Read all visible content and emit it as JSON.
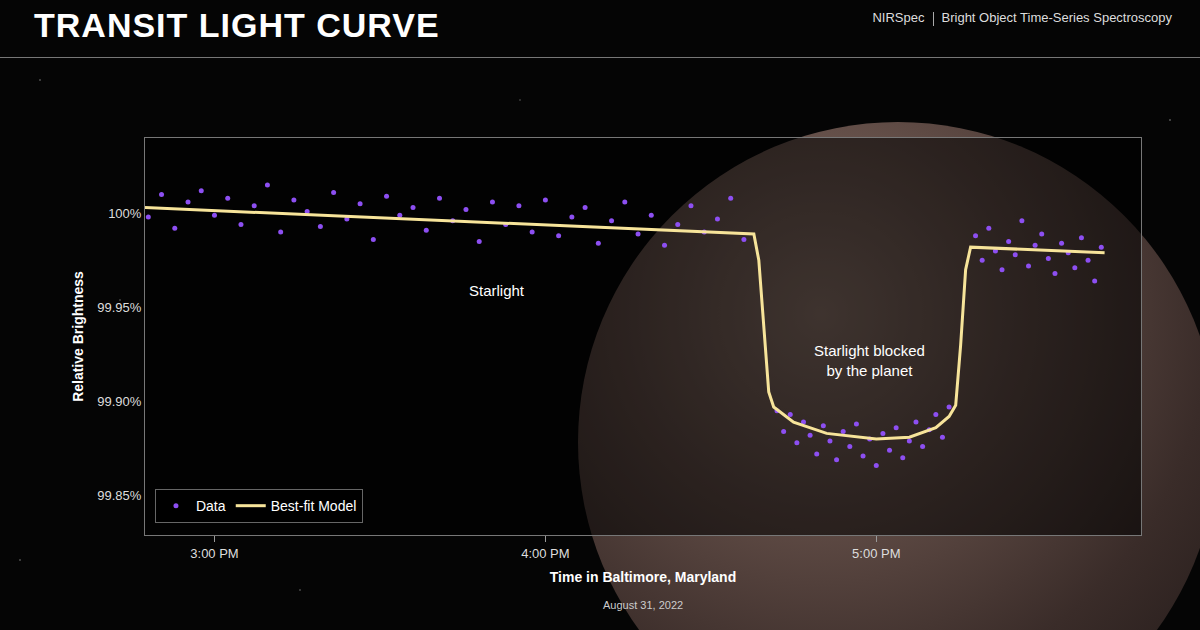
{
  "chart_data": {
    "type": "scatter",
    "title": "TRANSIT LIGHT CURVE",
    "header_right": [
      "NIRSpec",
      "Bright Object Time-Series Spectroscopy"
    ],
    "x_label": "Time in Baltimore, Maryland",
    "x_sublabel": "August 31, 2022",
    "y_label": "Relative Brightness",
    "xlim": [
      14.79,
      17.8
    ],
    "xticks": [
      {
        "value": 15,
        "label": "3:00 PM"
      },
      {
        "value": 16,
        "label": "4:00 PM"
      },
      {
        "value": 17,
        "label": "5:00 PM"
      }
    ],
    "ylim": [
      99.829,
      100.04
    ],
    "yticks": [
      {
        "value": 99.85,
        "label": "99.85%"
      },
      {
        "value": 99.9,
        "label": "99.90%"
      },
      {
        "value": 99.95,
        "label": "99.95%"
      },
      {
        "value": 100,
        "label": "100%"
      }
    ],
    "grid": false,
    "legend": "bottom left",
    "annotations": [
      {
        "text": [
          "Starlight"
        ],
        "x": 15.855,
        "y": 99.959
      },
      {
        "text": [
          "Starlight blocked",
          "by the planet"
        ],
        "x": 16.98,
        "y": 99.922
      }
    ],
    "series": [
      {
        "name": "Data",
        "type": "scatter",
        "marker": "circle",
        "color": "#8d4ff2",
        "x": [
          14.8,
          14.84,
          14.88,
          14.92,
          14.96,
          15.0,
          15.04,
          15.08,
          15.12,
          15.16,
          15.2,
          15.24,
          15.28,
          15.32,
          15.36,
          15.4,
          15.44,
          15.48,
          15.52,
          15.56,
          15.6,
          15.64,
          15.68,
          15.72,
          15.76,
          15.8,
          15.84,
          15.88,
          15.92,
          15.96,
          16.0,
          16.04,
          16.08,
          16.12,
          16.16,
          16.2,
          16.24,
          16.28,
          16.32,
          16.36,
          16.4,
          16.44,
          16.48,
          16.52,
          16.56,
          16.6,
          16.7,
          16.72,
          16.74,
          16.76,
          16.78,
          16.8,
          16.82,
          16.84,
          16.86,
          16.88,
          16.9,
          16.92,
          16.94,
          16.96,
          16.98,
          17.0,
          17.02,
          17.04,
          17.06,
          17.08,
          17.1,
          17.12,
          17.14,
          17.16,
          17.18,
          17.2,
          17.22,
          17.3,
          17.32,
          17.34,
          17.36,
          17.38,
          17.4,
          17.42,
          17.44,
          17.46,
          17.48,
          17.5,
          17.52,
          17.54,
          17.56,
          17.58,
          17.6,
          17.62,
          17.64,
          17.66,
          17.68
        ],
        "values": [
          99.998,
          100.01,
          99.992,
          100.006,
          100.012,
          99.999,
          100.008,
          99.994,
          100.004,
          100.015,
          99.99,
          100.007,
          100.001,
          99.993,
          100.011,
          99.997,
          100.005,
          99.986,
          100.009,
          99.999,
          100.003,
          99.991,
          100.008,
          99.996,
          100.002,
          99.985,
          100.006,
          99.994,
          100.004,
          99.99,
          100.007,
          99.988,
          99.998,
          100.003,
          99.984,
          99.996,
          100.006,
          99.989,
          99.999,
          99.983,
          99.994,
          100.004,
          99.99,
          99.997,
          100.008,
          99.986,
          99.895,
          99.884,
          99.893,
          99.878,
          99.889,
          99.882,
          99.872,
          99.887,
          99.879,
          99.869,
          99.884,
          99.876,
          99.888,
          99.871,
          99.88,
          99.866,
          99.883,
          99.874,
          99.886,
          99.87,
          99.879,
          99.889,
          99.876,
          99.885,
          99.893,
          99.881,
          99.897,
          99.988,
          99.975,
          99.992,
          99.98,
          99.97,
          99.985,
          99.978,
          99.996,
          99.972,
          99.983,
          99.989,
          99.976,
          99.968,
          99.984,
          99.979,
          99.971,
          99.987,
          99.975,
          99.964,
          99.982
        ]
      },
      {
        "name": "Best-fit Model",
        "type": "line",
        "line_style": "solid",
        "color": "#f7e49a",
        "x": [
          14.79,
          16.63,
          16.645,
          16.66,
          16.675,
          16.69,
          16.75,
          16.85,
          17.0,
          17.1,
          17.18,
          17.22,
          17.24,
          17.255,
          17.27,
          17.285,
          17.69
        ],
        "values": [
          100.003,
          99.989,
          99.975,
          99.94,
          99.905,
          99.897,
          99.889,
          99.883,
          99.88,
          99.881,
          99.886,
          99.892,
          99.898,
          99.93,
          99.97,
          99.982,
          99.979
        ]
      }
    ]
  }
}
